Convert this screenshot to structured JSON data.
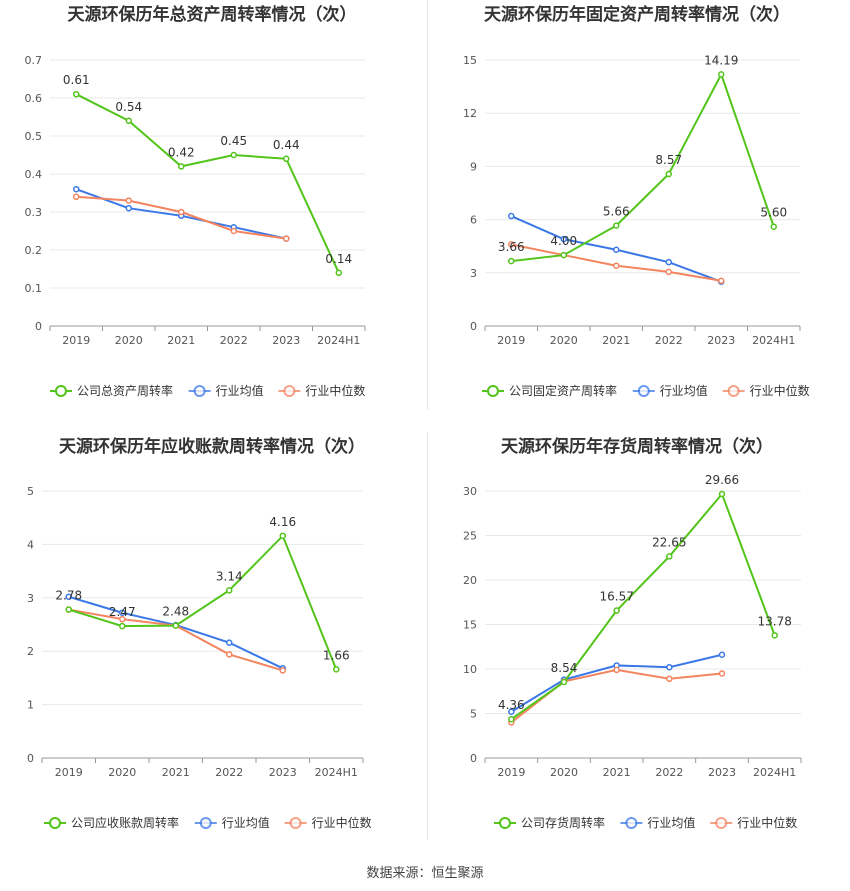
{
  "colors": {
    "company": "#52c41a",
    "avg": "#3b78e7",
    "median": "#f4845f",
    "grid": "#e8e8e8",
    "axis": "#999999",
    "text": "#555555"
  },
  "legend_labels_common": [
    "行业均值",
    "行业中位数"
  ],
  "source_text": "数据来源：恒生聚源",
  "chart_data": [
    {
      "type": "line",
      "title": "天源环保历年总资产周转率情况（次）",
      "categories": [
        "2019",
        "2020",
        "2021",
        "2022",
        "2023",
        "2024H1"
      ],
      "ylim": [
        0,
        0.7
      ],
      "yticks": [
        "0",
        "0.1",
        "0.2",
        "0.3",
        "0.4",
        "0.5",
        "0.6",
        "0.7"
      ],
      "ytick_values": [
        0,
        0.1,
        0.2,
        0.3,
        0.4,
        0.5,
        0.6,
        0.7
      ],
      "legend": "bottom",
      "series": [
        {
          "name": "公司总资产周转率",
          "color_key": "company",
          "values": [
            0.61,
            0.54,
            0.42,
            0.45,
            0.44,
            0.14
          ],
          "labels": [
            "0.61",
            "0.54",
            "0.42",
            "0.45",
            "0.44",
            "0.14"
          ]
        },
        {
          "name": "行业均值",
          "color_key": "avg",
          "values": [
            0.36,
            0.31,
            0.29,
            0.26,
            0.23,
            null
          ]
        },
        {
          "name": "行业中位数",
          "color_key": "median",
          "values": [
            0.34,
            0.33,
            0.3,
            0.25,
            0.23,
            null
          ]
        }
      ]
    },
    {
      "type": "line",
      "title": "天源环保历年固定资产周转率情况（次）",
      "categories": [
        "2019",
        "2020",
        "2021",
        "2022",
        "2023",
        "2024H1"
      ],
      "ylim": [
        0,
        15
      ],
      "yticks": [
        "0",
        "3",
        "6",
        "9",
        "12",
        "15"
      ],
      "ytick_values": [
        0,
        3,
        6,
        9,
        12,
        15
      ],
      "legend": "bottom",
      "series": [
        {
          "name": "公司固定资产周转率",
          "color_key": "company",
          "values": [
            3.66,
            4.0,
            5.66,
            8.57,
            14.19,
            5.6
          ],
          "labels": [
            "3.66",
            "4.00",
            "5.66",
            "8.57",
            "14.19",
            "5.60"
          ]
        },
        {
          "name": "行业均值",
          "color_key": "avg",
          "values": [
            6.2,
            4.9,
            4.3,
            3.6,
            2.5,
            null
          ]
        },
        {
          "name": "行业中位数",
          "color_key": "median",
          "values": [
            4.6,
            4.0,
            3.4,
            3.05,
            2.55,
            null
          ]
        }
      ]
    },
    {
      "type": "line",
      "title": "天源环保历年应收账款周转率情况（次）",
      "categories": [
        "2019",
        "2020",
        "2021",
        "2022",
        "2023",
        "2024H1"
      ],
      "ylim": [
        0,
        5
      ],
      "yticks": [
        "0",
        "1",
        "2",
        "3",
        "4",
        "5"
      ],
      "ytick_values": [
        0,
        1,
        2,
        3,
        4,
        5
      ],
      "legend": "bottom",
      "series": [
        {
          "name": "公司应收账款周转率",
          "color_key": "company",
          "values": [
            2.78,
            2.47,
            2.48,
            3.14,
            4.16,
            1.66
          ],
          "labels": [
            "2.78",
            "2.47",
            "2.48",
            "3.14",
            "4.16",
            "1.66"
          ]
        },
        {
          "name": "行业均值",
          "color_key": "avg",
          "values": [
            3.02,
            2.72,
            2.49,
            2.16,
            1.68,
            null
          ]
        },
        {
          "name": "行业中位数",
          "color_key": "median",
          "values": [
            2.78,
            2.6,
            2.48,
            1.94,
            1.64,
            null
          ]
        }
      ]
    },
    {
      "type": "line",
      "title": "天源环保历年存货周转率情况（次）",
      "categories": [
        "2019",
        "2020",
        "2021",
        "2022",
        "2023",
        "2024H1"
      ],
      "ylim": [
        0,
        30
      ],
      "yticks": [
        "0",
        "5",
        "10",
        "15",
        "20",
        "25",
        "30"
      ],
      "ytick_values": [
        0,
        5,
        10,
        15,
        20,
        25,
        30
      ],
      "legend": "bottom",
      "series": [
        {
          "name": "公司存货周转率",
          "color_key": "company",
          "values": [
            4.36,
            8.54,
            16.57,
            22.65,
            29.66,
            13.78
          ],
          "labels": [
            "4.36",
            "8.54",
            "16.57",
            "22.65",
            "29.66",
            "13.78"
          ]
        },
        {
          "name": "行业均值",
          "color_key": "avg",
          "values": [
            5.2,
            8.8,
            10.4,
            10.2,
            11.6,
            null
          ]
        },
        {
          "name": "行业中位数",
          "color_key": "median",
          "values": [
            4.0,
            8.6,
            9.9,
            8.9,
            9.5,
            null
          ]
        }
      ]
    }
  ]
}
